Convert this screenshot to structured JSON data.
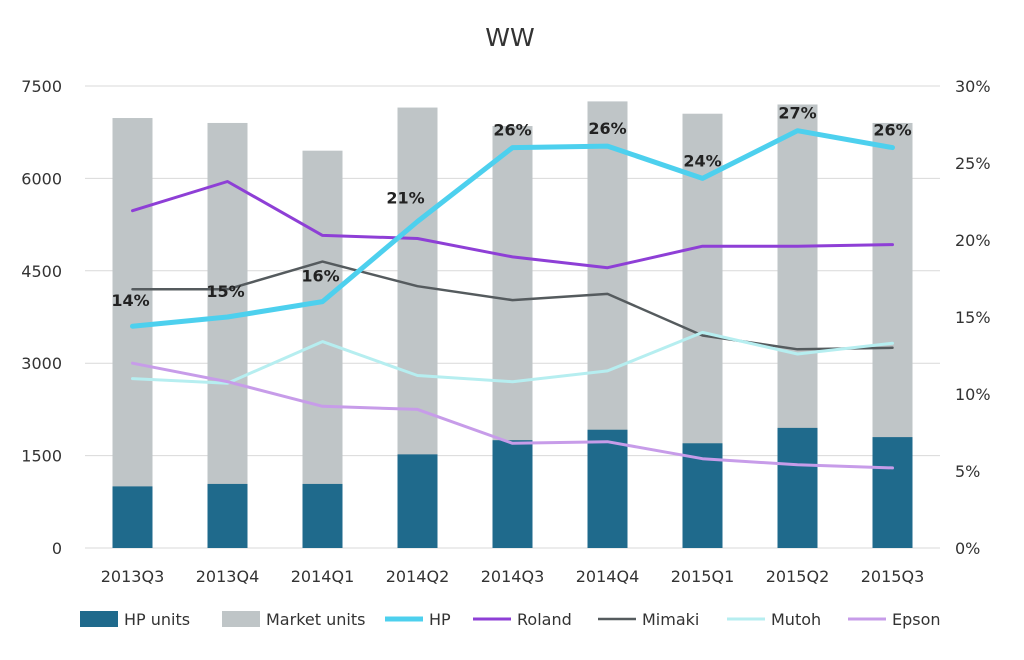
{
  "chart_data": {
    "type": "bar",
    "title": "WW",
    "categories": [
      "2013Q3",
      "2013Q4",
      "2014Q1",
      "2014Q2",
      "2014Q3",
      "2014Q4",
      "2015Q1",
      "2015Q2",
      "2015Q3"
    ],
    "y_left": {
      "ylim": [
        0,
        7500
      ],
      "ticks": [
        "0",
        "1500",
        "3000",
        "4500",
        "6000",
        "7500"
      ]
    },
    "y_right": {
      "ylim": [
        0,
        30
      ],
      "ticks": [
        "0%",
        "5%",
        "10%",
        "15%",
        "20%",
        "25%",
        "30%"
      ]
    },
    "grid": true,
    "legend_position": "bottom",
    "bar_series": [
      {
        "name": "Market units",
        "color": "#bfc5c7",
        "values": [
          6980,
          6900,
          6450,
          7150,
          6850,
          7250,
          7050,
          7200,
          6900
        ]
      },
      {
        "name": "HP units",
        "color": "#1f6a8c",
        "values": [
          1000,
          1040,
          1040,
          1520,
          1750,
          1920,
          1700,
          1950,
          1800
        ]
      }
    ],
    "line_series": [
      {
        "name": "HP",
        "color": "#4dd0ee",
        "width": 5,
        "values": [
          14.4,
          15.0,
          16.0,
          21.2,
          26.0,
          26.1,
          24.0,
          27.1,
          26.0
        ]
      },
      {
        "name": "Roland",
        "color": "#8e3fd6",
        "width": 3,
        "values": [
          21.9,
          23.8,
          20.3,
          20.1,
          18.9,
          18.2,
          19.6,
          19.6,
          19.7
        ]
      },
      {
        "name": "Mimaki",
        "color": "#555b5e",
        "width": 2.5,
        "values": [
          16.8,
          16.8,
          18.6,
          17.0,
          16.1,
          16.5,
          13.8,
          12.9,
          13.0
        ]
      },
      {
        "name": "Mutoh",
        "color": "#b6eef0",
        "width": 3,
        "values": [
          11.0,
          10.7,
          13.4,
          11.2,
          10.8,
          11.5,
          14.0,
          12.6,
          13.3
        ]
      },
      {
        "name": "Epson",
        "color": "#c79ce9",
        "width": 3,
        "values": [
          12.0,
          10.8,
          9.2,
          9.0,
          6.8,
          6.9,
          5.8,
          5.4,
          5.2
        ]
      }
    ],
    "data_labels": {
      "series": "HP",
      "labels": [
        "14%",
        "15%",
        "16%",
        "21%",
        "26%",
        "26%",
        "24%",
        "27%",
        "26%"
      ]
    },
    "legend": [
      "HP units",
      "Market units",
      "HP",
      "Roland",
      "Mimaki",
      "Mutoh",
      "Epson"
    ]
  }
}
